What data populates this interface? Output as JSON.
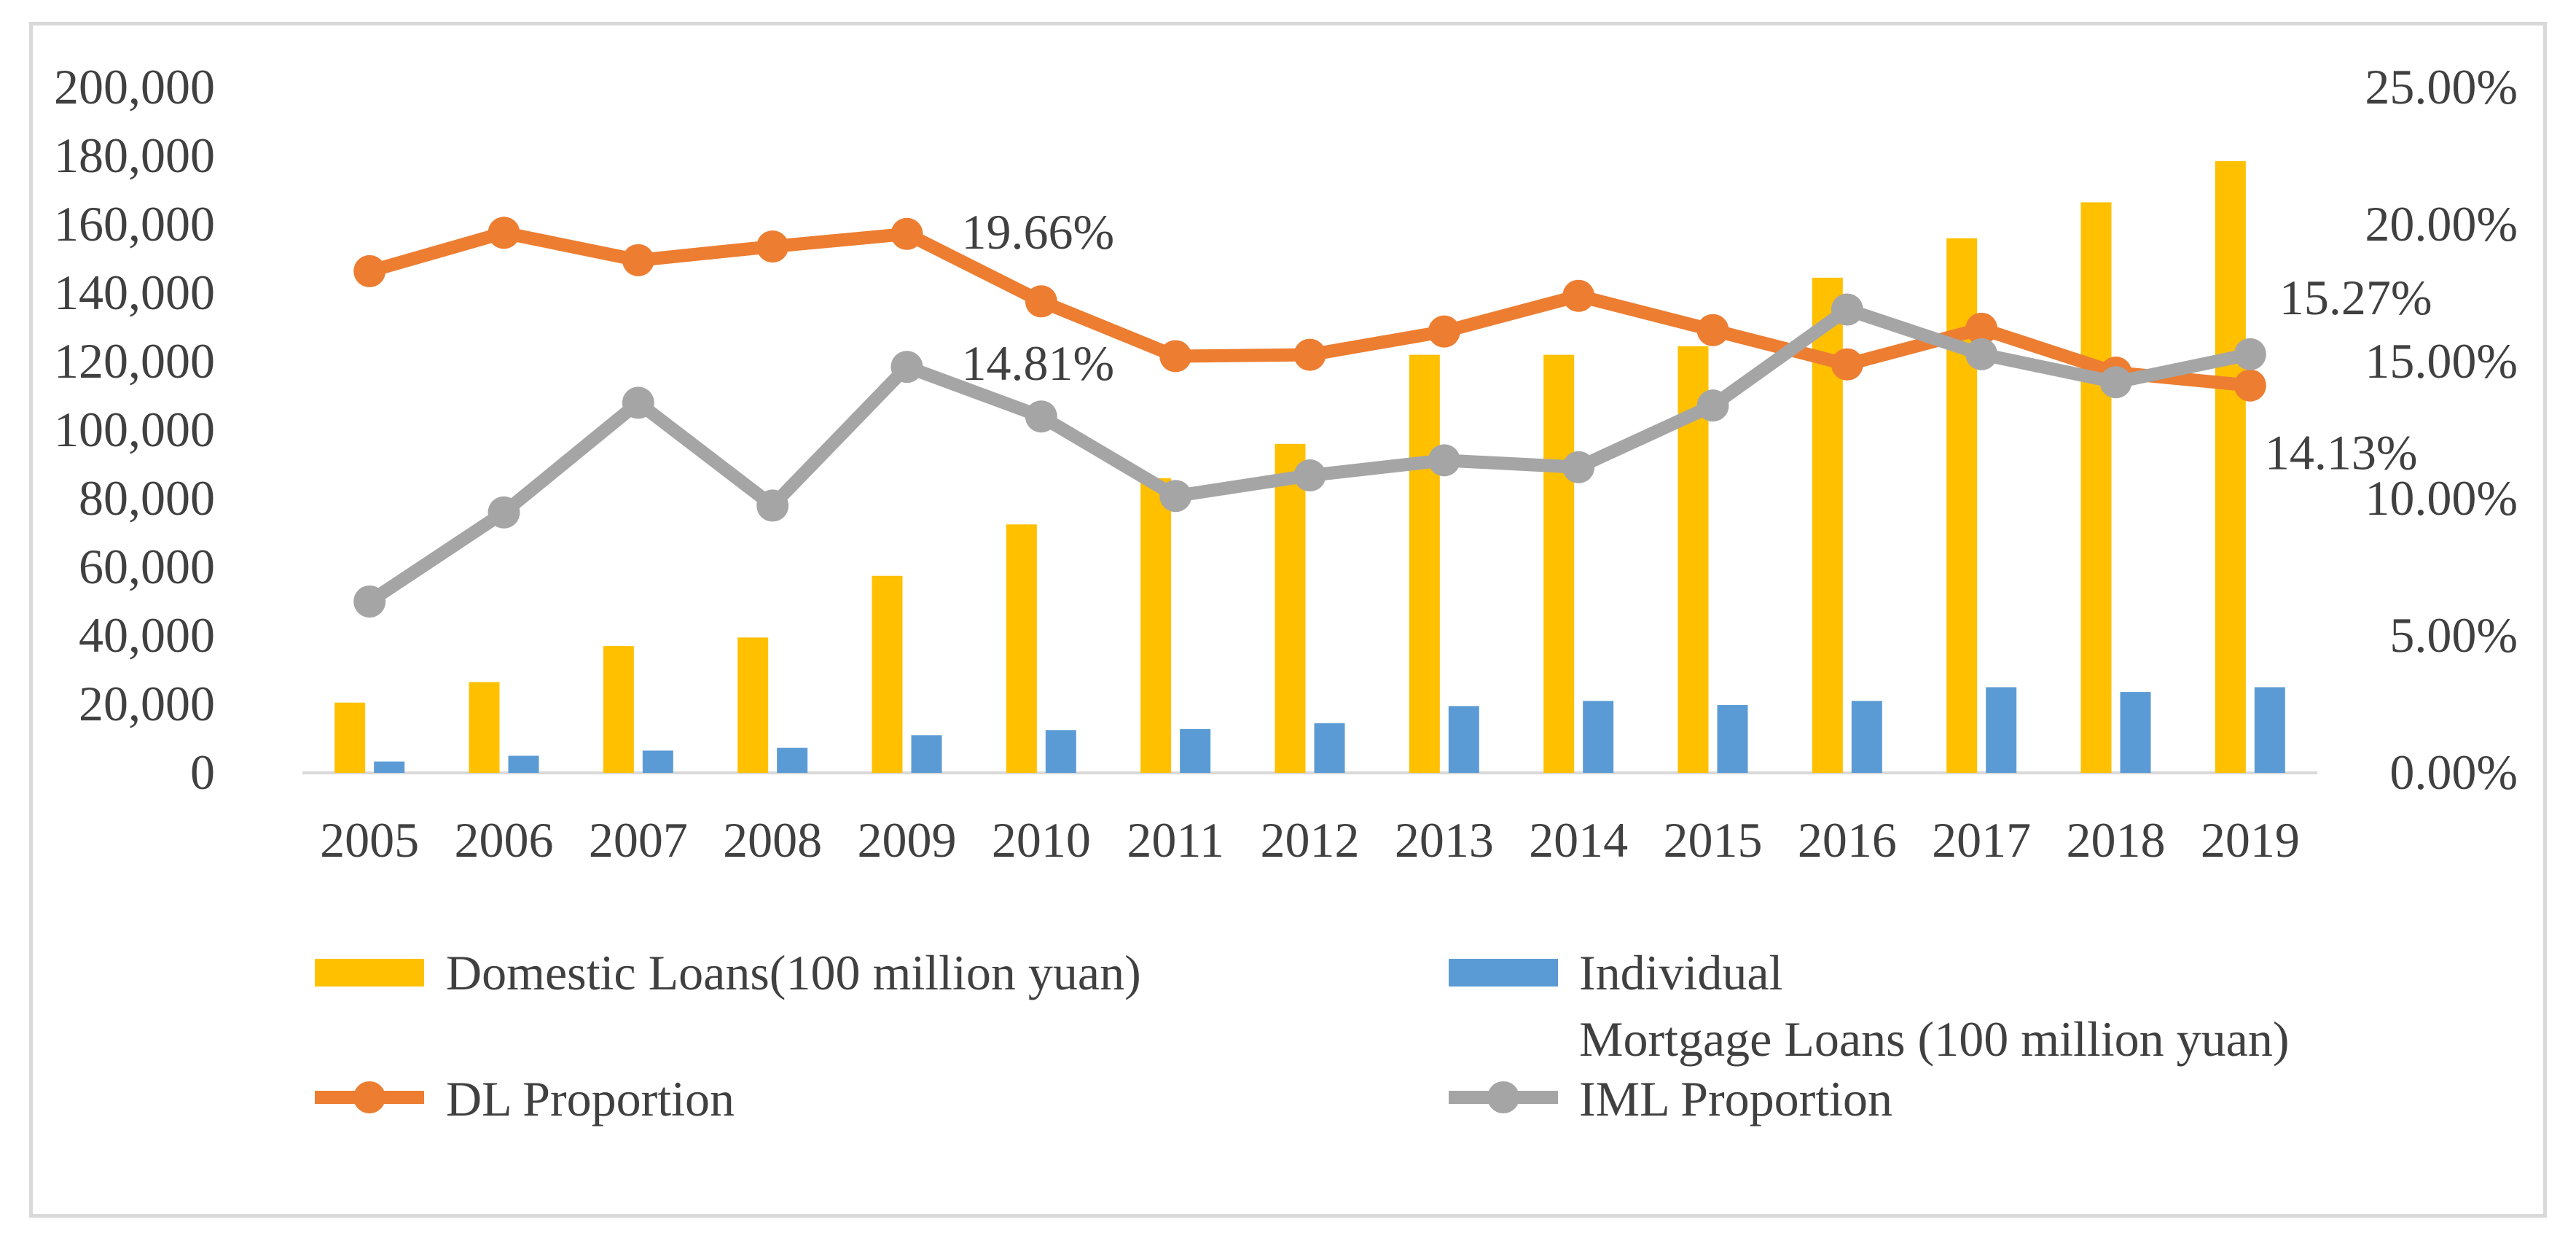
{
  "chart_data": {
    "type": "bar+line",
    "categories": [
      "2005",
      "2006",
      "2007",
      "2008",
      "2009",
      "2010",
      "2011",
      "2012",
      "2013",
      "2014",
      "2015",
      "2016",
      "2017",
      "2018",
      "2019"
    ],
    "series": [
      {
        "name": "Domestic Loans(100 million yuan)",
        "kind": "bar",
        "axis": "left",
        "color": "#ffc000",
        "values": [
          20500,
          26500,
          37000,
          39500,
          57500,
          72500,
          86000,
          96000,
          122000,
          122000,
          124500,
          144500,
          156000,
          166500,
          178500
        ]
      },
      {
        "name": "Individual Mortgage Loans (100 million yuan)",
        "legend_lines": [
          "Individual",
          "Mortgage Loans (100 million yuan)"
        ],
        "kind": "bar",
        "axis": "left",
        "color": "#5b9bd5",
        "values": [
          3300,
          5000,
          6500,
          7300,
          11000,
          12500,
          12800,
          14500,
          19500,
          21000,
          19800,
          21000,
          25000,
          23600,
          25000
        ]
      },
      {
        "name": "DL Proportion",
        "kind": "line",
        "axis": "right",
        "color": "#ed7d31",
        "values": [
          18.3,
          19.7,
          18.7,
          19.2,
          19.66,
          17.2,
          15.2,
          15.25,
          16.1,
          17.4,
          16.15,
          14.9,
          16.2,
          14.6,
          14.13
        ]
      },
      {
        "name": "IML Proportion",
        "kind": "line",
        "axis": "right",
        "color": "#a5a5a5",
        "values": [
          6.25,
          9.5,
          13.5,
          9.75,
          14.81,
          13.0,
          10.1,
          10.85,
          11.4,
          11.15,
          13.4,
          16.9,
          15.27,
          14.25,
          15.27
        ]
      }
    ],
    "y_left": {
      "ylim": [
        0,
        200000
      ],
      "ticks": [
        "0",
        "20,000",
        "40,000",
        "60,000",
        "80,000",
        "100,000",
        "120,000",
        "140,000",
        "160,000",
        "180,000",
        "200,000"
      ]
    },
    "y_right": {
      "ylim": [
        0,
        25
      ],
      "ticks": [
        "0.00%",
        "5.00%",
        "10.00%",
        "15.00%",
        "20.00%",
        "25.00%"
      ]
    },
    "annotations": [
      {
        "text": "19.66%",
        "category": "2009",
        "series": "DL Proportion"
      },
      {
        "text": "14.81%",
        "category": "2009",
        "series": "IML Proportion"
      },
      {
        "text": "15.27%",
        "category": "2019",
        "series": "IML Proportion"
      },
      {
        "text": "14.13%",
        "category": "2019",
        "series": "DL Proportion"
      }
    ],
    "legend_position": "bottom",
    "title": "",
    "xlabel": "",
    "ylabel": ""
  }
}
